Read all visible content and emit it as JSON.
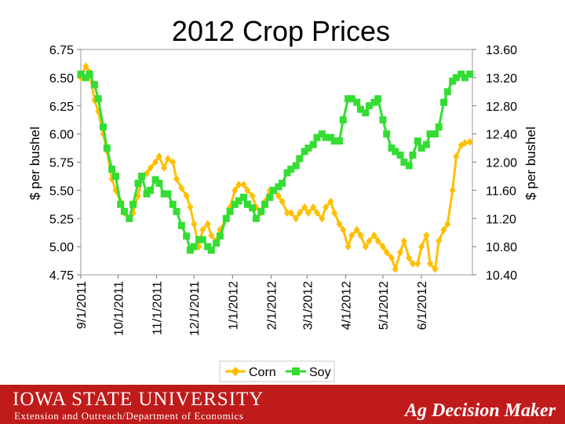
{
  "footer": {
    "university": "IOWA STATE UNIVERSITY",
    "department": "Extension and Outreach/Department of Economics",
    "brand": "Ag Decision Maker",
    "color": "#bf1b1b"
  },
  "chart_data": {
    "type": "line",
    "title": "2012 Crop Prices",
    "ylabel": "$ per bushel",
    "y2label": "$ per bushel",
    "ylim": [
      4.75,
      6.75
    ],
    "y2lim": [
      10.4,
      13.6
    ],
    "yticks": [
      "6.75",
      "6.50",
      "6.25",
      "6.00",
      "5.75",
      "5.50",
      "5.25",
      "5.00",
      "4.75"
    ],
    "y2ticks": [
      "13.60",
      "13.20",
      "12.80",
      "12.40",
      "12.00",
      "11.60",
      "11.20",
      "10.80",
      "10.40"
    ],
    "x_tick_labels": [
      "9/1/2011",
      "10/1/2011",
      "11/1/2011",
      "12/1/2011",
      "1/1/2012",
      "2/1/2012",
      "3/1/2012",
      "4/1/2012",
      "5/1/2012",
      "6/1/2012"
    ],
    "xlim": [
      "2011-09-01",
      "2012-07-12"
    ],
    "grid": false,
    "legend_position": "bottom",
    "series": [
      {
        "name": "Corn",
        "axis": "left",
        "color": "#ffbf00",
        "marker": "diamond",
        "x": [
          "2011-09-01",
          "2011-09-05",
          "2011-09-08",
          "2011-09-12",
          "2011-09-15",
          "2011-09-19",
          "2011-09-22",
          "2011-09-26",
          "2011-09-29",
          "2011-10-03",
          "2011-10-06",
          "2011-10-10",
          "2011-10-13",
          "2011-10-17",
          "2011-10-20",
          "2011-10-24",
          "2011-10-27",
          "2011-10-31",
          "2011-11-03",
          "2011-11-07",
          "2011-11-10",
          "2011-11-14",
          "2011-11-17",
          "2011-11-21",
          "2011-11-25",
          "2011-11-28",
          "2011-12-01",
          "2011-12-05",
          "2011-12-08",
          "2011-12-12",
          "2011-12-15",
          "2011-12-19",
          "2011-12-22",
          "2011-12-27",
          "2011-12-30",
          "2012-01-03",
          "2012-01-06",
          "2012-01-10",
          "2012-01-13",
          "2012-01-17",
          "2012-01-20",
          "2012-01-24",
          "2012-01-27",
          "2012-01-31",
          "2012-02-03",
          "2012-02-07",
          "2012-02-10",
          "2012-02-14",
          "2012-02-17",
          "2012-02-21",
          "2012-02-24",
          "2012-02-28",
          "2012-03-02",
          "2012-03-06",
          "2012-03-09",
          "2012-03-13",
          "2012-03-16",
          "2012-03-20",
          "2012-03-23",
          "2012-03-27",
          "2012-03-30",
          "2012-04-03",
          "2012-04-06",
          "2012-04-10",
          "2012-04-13",
          "2012-04-17",
          "2012-04-20",
          "2012-04-24",
          "2012-04-27",
          "2012-05-01",
          "2012-05-04",
          "2012-05-08",
          "2012-05-11",
          "2012-05-15",
          "2012-05-18",
          "2012-05-22",
          "2012-05-25",
          "2012-05-29",
          "2012-06-01",
          "2012-06-05",
          "2012-06-08",
          "2012-06-12",
          "2012-06-15",
          "2012-06-19",
          "2012-06-22",
          "2012-06-26",
          "2012-06-29",
          "2012-07-03",
          "2012-07-06",
          "2012-07-10"
        ],
        "values": [
          6.5,
          6.6,
          6.55,
          6.3,
          6.2,
          6.0,
          5.85,
          5.6,
          5.5,
          5.4,
          5.3,
          5.25,
          5.3,
          5.45,
          5.6,
          5.65,
          5.7,
          5.75,
          5.8,
          5.7,
          5.78,
          5.75,
          5.6,
          5.52,
          5.45,
          5.35,
          5.2,
          5.0,
          5.15,
          5.2,
          5.1,
          5.05,
          5.15,
          5.25,
          5.35,
          5.5,
          5.55,
          5.55,
          5.5,
          5.45,
          5.35,
          5.3,
          5.4,
          5.5,
          5.5,
          5.45,
          5.4,
          5.3,
          5.3,
          5.25,
          5.3,
          5.35,
          5.3,
          5.35,
          5.3,
          5.25,
          5.35,
          5.4,
          5.3,
          5.2,
          5.15,
          5.0,
          5.1,
          5.15,
          5.1,
          5.0,
          5.05,
          5.1,
          5.05,
          5.0,
          4.95,
          4.9,
          4.8,
          4.95,
          5.05,
          4.9,
          4.85,
          4.85,
          5.0,
          5.1,
          4.85,
          4.8,
          5.05,
          5.15,
          5.2,
          5.5,
          5.8,
          5.9,
          5.92,
          5.93
        ]
      },
      {
        "name": "Soy",
        "axis": "right",
        "color": "#33dd33",
        "marker": "square",
        "x": [
          "2011-09-01",
          "2011-09-05",
          "2011-09-08",
          "2011-09-12",
          "2011-09-15",
          "2011-09-19",
          "2011-09-22",
          "2011-09-26",
          "2011-09-29",
          "2011-10-03",
          "2011-10-06",
          "2011-10-10",
          "2011-10-13",
          "2011-10-17",
          "2011-10-20",
          "2011-10-24",
          "2011-10-27",
          "2011-10-31",
          "2011-11-03",
          "2011-11-07",
          "2011-11-10",
          "2011-11-14",
          "2011-11-17",
          "2011-11-21",
          "2011-11-25",
          "2011-11-28",
          "2011-12-01",
          "2011-12-05",
          "2011-12-08",
          "2011-12-12",
          "2011-12-15",
          "2011-12-19",
          "2011-12-22",
          "2011-12-27",
          "2011-12-30",
          "2012-01-03",
          "2012-01-06",
          "2012-01-10",
          "2012-01-13",
          "2012-01-17",
          "2012-01-20",
          "2012-01-24",
          "2012-01-27",
          "2012-01-31",
          "2012-02-03",
          "2012-02-07",
          "2012-02-10",
          "2012-02-14",
          "2012-02-17",
          "2012-02-21",
          "2012-02-24",
          "2012-02-28",
          "2012-03-02",
          "2012-03-06",
          "2012-03-09",
          "2012-03-13",
          "2012-03-16",
          "2012-03-20",
          "2012-03-23",
          "2012-03-27",
          "2012-03-30",
          "2012-04-03",
          "2012-04-06",
          "2012-04-10",
          "2012-04-13",
          "2012-04-17",
          "2012-04-20",
          "2012-04-24",
          "2012-04-27",
          "2012-05-01",
          "2012-05-04",
          "2012-05-08",
          "2012-05-11",
          "2012-05-15",
          "2012-05-18",
          "2012-05-22",
          "2012-05-25",
          "2012-05-29",
          "2012-06-01",
          "2012-06-05",
          "2012-06-08",
          "2012-06-12",
          "2012-06-15",
          "2012-06-19",
          "2012-06-22",
          "2012-06-26",
          "2012-06-29",
          "2012-07-03",
          "2012-07-06",
          "2012-07-10"
        ],
        "values": [
          13.25,
          13.2,
          13.25,
          13.1,
          12.9,
          12.5,
          12.2,
          11.9,
          11.8,
          11.4,
          11.3,
          11.2,
          11.4,
          11.7,
          11.8,
          11.55,
          11.6,
          11.75,
          11.7,
          11.55,
          11.55,
          11.4,
          11.3,
          11.1,
          10.95,
          10.75,
          10.8,
          10.9,
          10.9,
          10.8,
          10.75,
          10.85,
          10.95,
          11.2,
          11.3,
          11.4,
          11.45,
          11.5,
          11.4,
          11.35,
          11.2,
          11.3,
          11.4,
          11.5,
          11.6,
          11.65,
          11.7,
          11.85,
          11.9,
          11.95,
          12.05,
          12.15,
          12.2,
          12.25,
          12.35,
          12.4,
          12.35,
          12.35,
          12.3,
          12.3,
          12.6,
          12.9,
          12.9,
          12.85,
          12.75,
          12.7,
          12.8,
          12.85,
          12.9,
          12.6,
          12.4,
          12.2,
          12.15,
          12.1,
          12.0,
          11.95,
          12.1,
          12.3,
          12.2,
          12.25,
          12.4,
          12.4,
          12.5,
          12.85,
          13.0,
          13.15,
          13.2,
          13.25,
          13.2,
          13.25
        ]
      }
    ]
  }
}
